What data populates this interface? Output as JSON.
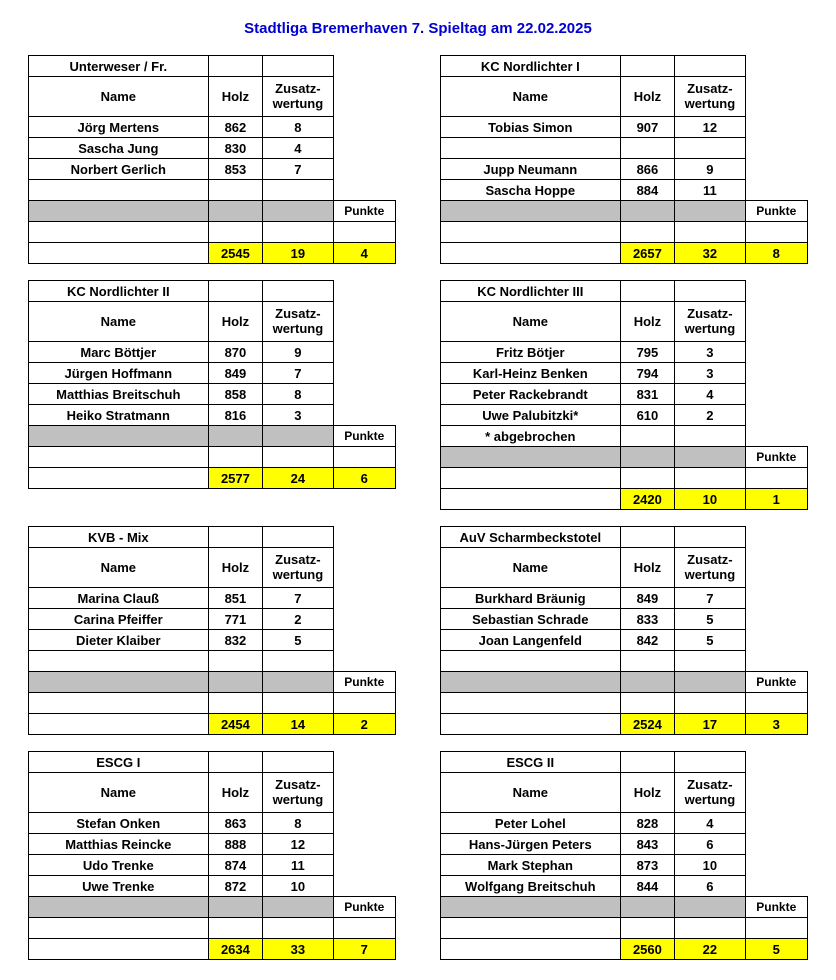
{
  "title": "Stadtliga Bremerhaven  7. Spieltag am 22.02.2025",
  "labels": {
    "name": "Name",
    "holz": "Holz",
    "zusatz": "Zusatz-wertung",
    "punkte": "Punkte"
  },
  "colors": {
    "title": "#0000d0",
    "gray": "#c0c0c0",
    "yellow": "#ffff00",
    "border": "#000000"
  },
  "teams": [
    {
      "team": "Unterweser / Fr.",
      "players": [
        {
          "name": "Jörg Mertens",
          "holz": "862",
          "zusatz": "8"
        },
        {
          "name": "Sascha Jung",
          "holz": "830",
          "zusatz": "4"
        },
        {
          "name": "Norbert Gerlich",
          "holz": "853",
          "zusatz": "7"
        },
        {
          "name": "",
          "holz": "",
          "zusatz": ""
        }
      ],
      "note": "",
      "totals": {
        "holz": "2545",
        "zusatz": "19",
        "punkte": "4"
      }
    },
    {
      "team": "KC Nordlichter I",
      "players": [
        {
          "name": "Tobias Simon",
          "holz": "907",
          "zusatz": "12"
        },
        {
          "name": "",
          "holz": "",
          "zusatz": ""
        },
        {
          "name": "Jupp Neumann",
          "holz": "866",
          "zusatz": "9"
        },
        {
          "name": "Sascha Hoppe",
          "holz": "884",
          "zusatz": "11"
        }
      ],
      "note": "",
      "totals": {
        "holz": "2657",
        "zusatz": "32",
        "punkte": "8"
      }
    },
    {
      "team": "KC Nordlichter II",
      "players": [
        {
          "name": "Marc Böttjer",
          "holz": "870",
          "zusatz": "9"
        },
        {
          "name": "Jürgen Hoffmann",
          "holz": "849",
          "zusatz": "7"
        },
        {
          "name": "Matthias Breitschuh",
          "holz": "858",
          "zusatz": "8"
        },
        {
          "name": "Heiko Stratmann",
          "holz": "816",
          "zusatz": "3"
        }
      ],
      "note": "",
      "totals": {
        "holz": "2577",
        "zusatz": "24",
        "punkte": "6"
      }
    },
    {
      "team": "KC Nordlichter III",
      "players": [
        {
          "name": "Fritz Bötjer",
          "holz": "795",
          "zusatz": "3"
        },
        {
          "name": "Karl-Heinz Benken",
          "holz": "794",
          "zusatz": "3"
        },
        {
          "name": "Peter Rackebrandt",
          "holz": "831",
          "zusatz": "4"
        },
        {
          "name": "Uwe Palubitzki*",
          "holz": "610",
          "zusatz": "2"
        }
      ],
      "note": "* abgebrochen",
      "totals": {
        "holz": "2420",
        "zusatz": "10",
        "punkte": "1"
      }
    },
    {
      "team": "KVB - Mix",
      "players": [
        {
          "name": "Marina Clauß",
          "holz": "851",
          "zusatz": "7"
        },
        {
          "name": "Carina Pfeiffer",
          "holz": "771",
          "zusatz": "2"
        },
        {
          "name": "Dieter Klaiber",
          "holz": "832",
          "zusatz": "5"
        },
        {
          "name": "",
          "holz": "",
          "zusatz": ""
        }
      ],
      "note": "",
      "totals": {
        "holz": "2454",
        "zusatz": "14",
        "punkte": "2"
      }
    },
    {
      "team": "AuV Scharmbeckstotel",
      "players": [
        {
          "name": "Burkhard Bräunig",
          "holz": "849",
          "zusatz": "7"
        },
        {
          "name": "Sebastian Schrade",
          "holz": "833",
          "zusatz": "5"
        },
        {
          "name": "Joan Langenfeld",
          "holz": "842",
          "zusatz": "5"
        },
        {
          "name": "",
          "holz": "",
          "zusatz": ""
        }
      ],
      "note": "",
      "totals": {
        "holz": "2524",
        "zusatz": "17",
        "punkte": "3"
      }
    },
    {
      "team": "ESCG I",
      "players": [
        {
          "name": "Stefan Onken",
          "holz": "863",
          "zusatz": "8"
        },
        {
          "name": "Matthias Reincke",
          "holz": "888",
          "zusatz": "12"
        },
        {
          "name": "Udo Trenke",
          "holz": "874",
          "zusatz": "11"
        },
        {
          "name": "Uwe Trenke",
          "holz": "872",
          "zusatz": "10"
        }
      ],
      "note": "",
      "totals": {
        "holz": "2634",
        "zusatz": "33",
        "punkte": "7"
      }
    },
    {
      "team": "ESCG II",
      "players": [
        {
          "name": "Peter Lohel",
          "holz": "828",
          "zusatz": "4"
        },
        {
          "name": "Hans-Jürgen Peters",
          "holz": "843",
          "zusatz": "6"
        },
        {
          "name": "Mark Stephan",
          "holz": "873",
          "zusatz": "10"
        },
        {
          "name": "Wolfgang Breitschuh",
          "holz": "844",
          "zusatz": "6"
        }
      ],
      "note": "",
      "totals": {
        "holz": "2560",
        "zusatz": "22",
        "punkte": "5"
      }
    }
  ]
}
